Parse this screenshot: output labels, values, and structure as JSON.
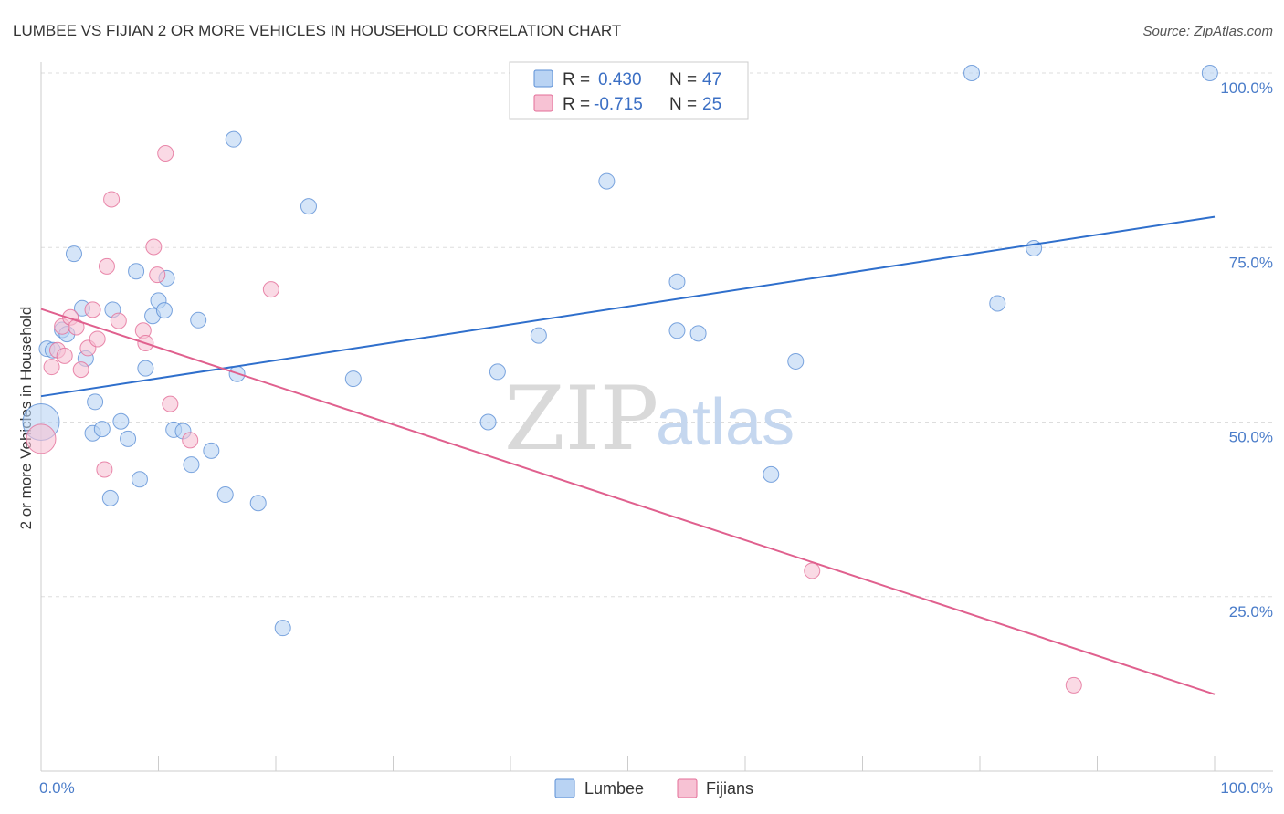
{
  "chart_data": {
    "type": "scatter",
    "title": "LUMBEE VS FIJIAN 2 OR MORE VEHICLES IN HOUSEHOLD CORRELATION CHART",
    "source": "Source: ZipAtlas.com",
    "xlabel": "",
    "ylabel": "2 or more Vehicles in Household",
    "xlim": [
      0,
      100
    ],
    "ylim": [
      0,
      102
    ],
    "x_tick_labels": [
      "0.0%",
      "100.0%"
    ],
    "y_ticks": [
      25,
      50,
      75,
      100
    ],
    "y_tick_labels": [
      "25.0%",
      "50.0%",
      "75.0%",
      "100.0%"
    ],
    "grid": true,
    "watermark": {
      "zip": "ZIP",
      "atlas": "atlas"
    },
    "legend": {
      "r_label": "R =",
      "n_label": "N =",
      "entries": [
        {
          "name": "Lumbee",
          "r": "0.430",
          "n": "47",
          "color": "#5b8fd6",
          "fill": "#b9d3f3"
        },
        {
          "name": "Fijians",
          "r": "-0.715",
          "n": "25",
          "color": "#e36d97",
          "fill": "#f7c2d4"
        }
      ]
    },
    "series": [
      {
        "name": "Lumbee",
        "color": "#5b8fd6",
        "fill": "#b9d3f3",
        "trend": {
          "x": [
            0,
            100
          ],
          "y": [
            53.7,
            79.4
          ],
          "color": "#2f6fcc"
        },
        "points": [
          {
            "x": 0,
            "y": 50,
            "size": 20
          },
          {
            "x": 0.5,
            "y": 60.5
          },
          {
            "x": 1,
            "y": 60.3
          },
          {
            "x": 1.8,
            "y": 63.2
          },
          {
            "x": 2.2,
            "y": 62.6
          },
          {
            "x": 2.8,
            "y": 74.1
          },
          {
            "x": 3.5,
            "y": 66.3
          },
          {
            "x": 3.8,
            "y": 59.1
          },
          {
            "x": 4.4,
            "y": 48.4
          },
          {
            "x": 4.6,
            "y": 52.9
          },
          {
            "x": 5.2,
            "y": 49
          },
          {
            "x": 5.9,
            "y": 39.1
          },
          {
            "x": 6.1,
            "y": 66.1
          },
          {
            "x": 6.8,
            "y": 50.1
          },
          {
            "x": 7.4,
            "y": 47.6
          },
          {
            "x": 8.1,
            "y": 71.6
          },
          {
            "x": 8.4,
            "y": 41.8
          },
          {
            "x": 8.9,
            "y": 57.7
          },
          {
            "x": 9.5,
            "y": 65.2
          },
          {
            "x": 10,
            "y": 67.4
          },
          {
            "x": 10.5,
            "y": 66
          },
          {
            "x": 10.7,
            "y": 70.6
          },
          {
            "x": 11.3,
            "y": 48.9
          },
          {
            "x": 12.1,
            "y": 48.7
          },
          {
            "x": 12.8,
            "y": 43.9
          },
          {
            "x": 13.4,
            "y": 64.6
          },
          {
            "x": 14.5,
            "y": 45.9
          },
          {
            "x": 15.7,
            "y": 39.6
          },
          {
            "x": 16.4,
            "y": 90.5
          },
          {
            "x": 16.7,
            "y": 56.9
          },
          {
            "x": 18.5,
            "y": 38.4
          },
          {
            "x": 20.6,
            "y": 20.5
          },
          {
            "x": 22.8,
            "y": 80.9
          },
          {
            "x": 26.6,
            "y": 56.2
          },
          {
            "x": 38.1,
            "y": 50
          },
          {
            "x": 38.9,
            "y": 57.2
          },
          {
            "x": 42.4,
            "y": 62.4
          },
          {
            "x": 48.2,
            "y": 84.5
          },
          {
            "x": 54.2,
            "y": 70.1
          },
          {
            "x": 54.2,
            "y": 63.1
          },
          {
            "x": 56,
            "y": 62.7
          },
          {
            "x": 62.2,
            "y": 42.5
          },
          {
            "x": 64.3,
            "y": 58.7
          },
          {
            "x": 79.3,
            "y": 100
          },
          {
            "x": 81.5,
            "y": 67
          },
          {
            "x": 84.6,
            "y": 74.9
          },
          {
            "x": 99.6,
            "y": 100
          }
        ]
      },
      {
        "name": "Fijians",
        "color": "#e36d97",
        "fill": "#f7c2d4",
        "trend": {
          "x": [
            0,
            100
          ],
          "y": [
            66.2,
            11
          ],
          "color": "#e0608e"
        },
        "points": [
          {
            "x": 0,
            "y": 47.6,
            "size": 16
          },
          {
            "x": 0.9,
            "y": 57.9
          },
          {
            "x": 1.4,
            "y": 60.3
          },
          {
            "x": 1.8,
            "y": 63.7
          },
          {
            "x": 2,
            "y": 59.5
          },
          {
            "x": 2.5,
            "y": 65
          },
          {
            "x": 3,
            "y": 63.6
          },
          {
            "x": 3.4,
            "y": 57.5
          },
          {
            "x": 4,
            "y": 60.6
          },
          {
            "x": 4.4,
            "y": 66.1
          },
          {
            "x": 4.8,
            "y": 61.9
          },
          {
            "x": 5.4,
            "y": 43.2
          },
          {
            "x": 5.6,
            "y": 72.3
          },
          {
            "x": 6,
            "y": 81.9
          },
          {
            "x": 6.6,
            "y": 64.5
          },
          {
            "x": 8.7,
            "y": 63.1
          },
          {
            "x": 8.9,
            "y": 61.3
          },
          {
            "x": 9.6,
            "y": 75.1
          },
          {
            "x": 9.9,
            "y": 71.1
          },
          {
            "x": 10.6,
            "y": 88.5
          },
          {
            "x": 11,
            "y": 52.6
          },
          {
            "x": 12.7,
            "y": 47.4
          },
          {
            "x": 19.6,
            "y": 69
          },
          {
            "x": 65.7,
            "y": 28.7
          },
          {
            "x": 88,
            "y": 12.3
          }
        ]
      }
    ]
  }
}
